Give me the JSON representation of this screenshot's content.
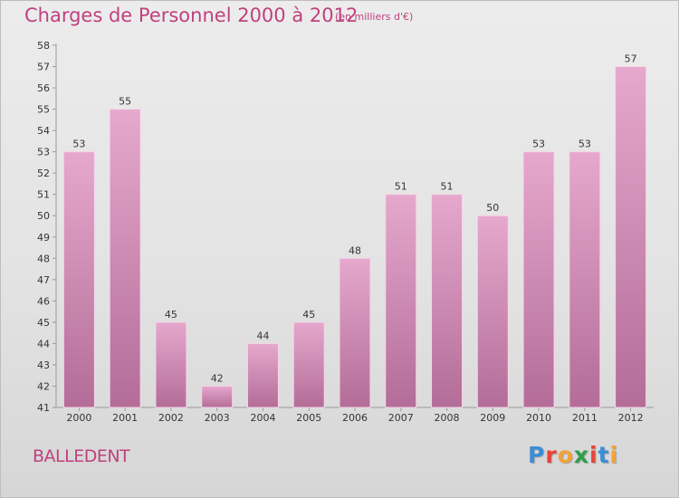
{
  "header": {
    "title": "Charges de Personnel 2000 à 2012",
    "subtitle": "(en milliers d'€)"
  },
  "footer": {
    "city": "BALLEDENT",
    "logo_text": "Proxiti",
    "logo_colors": [
      "#3a8ed8",
      "#e8443a",
      "#f2a33a",
      "#2e9e4a",
      "#e8443a",
      "#3a8ed8",
      "#f2a33a"
    ]
  },
  "colors": {
    "bar_top": "#e6a8cd",
    "bar_bottom": "#b36d98",
    "bar_edge": "#f4d6e8",
    "text": "#333333",
    "title": "#c0417e",
    "grid": "#c8c8c8"
  },
  "chart_data": {
    "type": "bar",
    "categories": [
      "2000",
      "2001",
      "2002",
      "2003",
      "2004",
      "2005",
      "2006",
      "2007",
      "2008",
      "2009",
      "2010",
      "2011",
      "2012"
    ],
    "values": [
      53,
      55,
      45,
      42,
      44,
      45,
      48,
      51,
      51,
      50,
      53,
      53,
      57
    ],
    "title": "Charges de Personnel 2000 à 2012",
    "subtitle": "(en milliers d'€)",
    "ylim": [
      41,
      58
    ],
    "yticks": [
      41,
      42,
      43,
      44,
      45,
      46,
      47,
      48,
      49,
      50,
      51,
      52,
      53,
      54,
      55,
      56,
      57,
      58
    ],
    "data_labels": true,
    "grid": false
  }
}
